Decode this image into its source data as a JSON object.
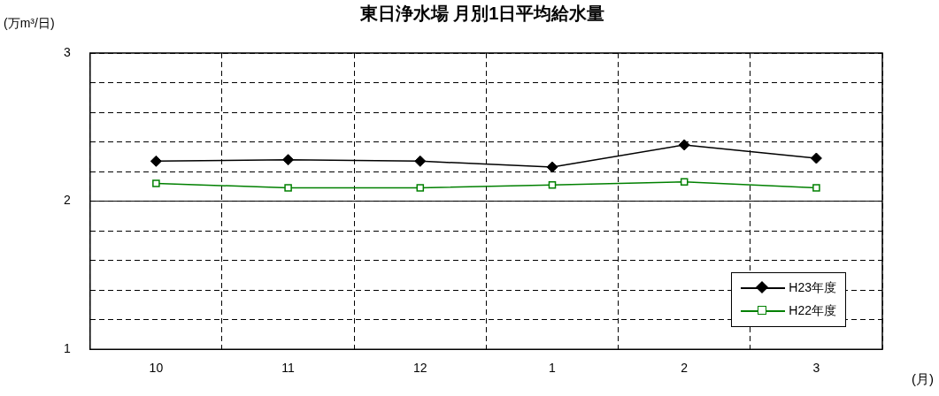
{
  "chart_data": {
    "type": "line",
    "title": "東日浄水場 月別1日平均給水量",
    "ylabel": "(万m³/日)",
    "xlabel": "(月)",
    "categories": [
      "10",
      "11",
      "12",
      "1",
      "2",
      "3"
    ],
    "series": [
      {
        "name": "H23年度",
        "color": "#000000",
        "marker": "diamond",
        "values": [
          2.27,
          2.28,
          2.27,
          2.23,
          2.38,
          2.29
        ]
      },
      {
        "name": "H22年度",
        "color": "#008000",
        "marker": "square",
        "values": [
          2.12,
          2.09,
          2.09,
          2.11,
          2.13,
          2.09
        ]
      }
    ],
    "ylim": [
      1,
      3
    ],
    "yticks": [
      1,
      {
        "value": 1.2,
        "label": null
      },
      {
        "value": 1.4,
        "label": null
      },
      {
        "value": 1.6,
        "label": null
      },
      {
        "value": 1.8,
        "label": null
      },
      2,
      {
        "value": 2.2,
        "label": null
      },
      {
        "value": 2.4,
        "label": null
      },
      {
        "value": 2.6,
        "label": null
      },
      {
        "value": 2.8,
        "label": null
      },
      3
    ],
    "ref_lines": [
      {
        "axis": "y",
        "value": 2,
        "color": "#000000",
        "line_style": "solid"
      }
    ],
    "grid": true,
    "legend": "bottom right",
    "line_style": "solid"
  }
}
